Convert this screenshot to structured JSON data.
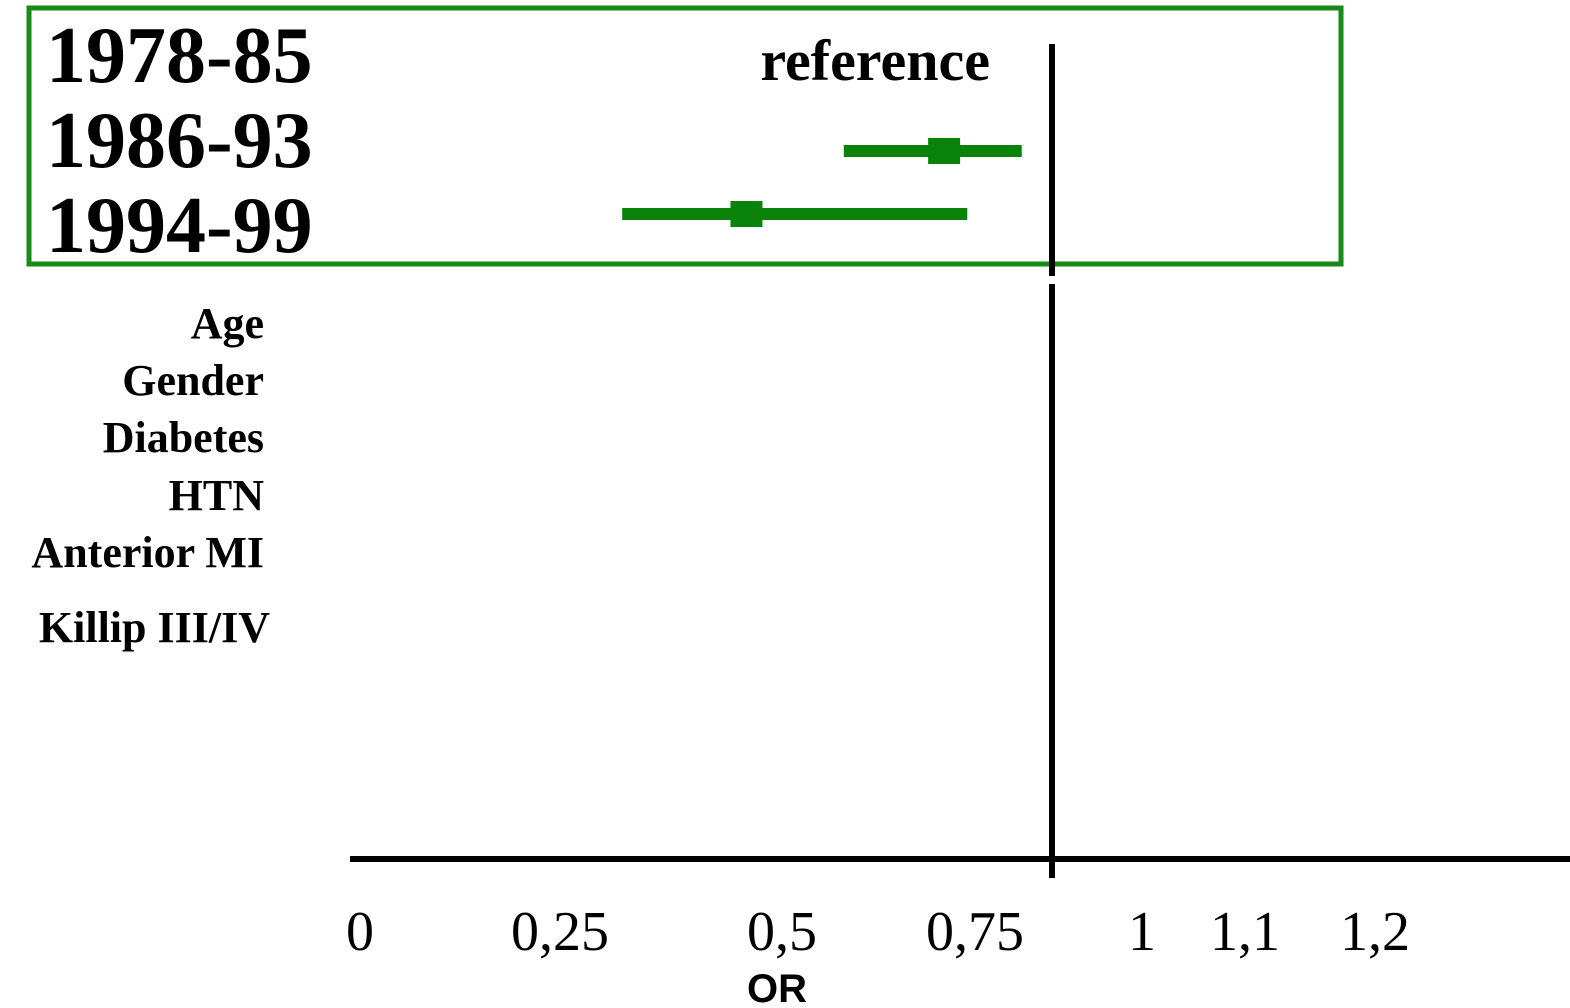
{
  "chart_data": {
    "type": "forest",
    "xlabel": "OR",
    "reference_label": "reference",
    "reference_line_value": 1,
    "x_ticks": [
      {
        "value": 0,
        "label": "0"
      },
      {
        "value": 0.25,
        "label": "0,25"
      },
      {
        "value": 0.5,
        "label": "0,5"
      },
      {
        "value": 0.75,
        "label": "0,75"
      },
      {
        "value": 1,
        "label": "1"
      },
      {
        "value": 1.1,
        "label": "1,1"
      },
      {
        "value": 1.2,
        "label": "1,2"
      }
    ],
    "periods": [
      {
        "label": "1978-85",
        "reference": true
      },
      {
        "label": "1986-93",
        "or": 0.71,
        "ci_low": 0.58,
        "ci_high": 0.82
      },
      {
        "label": "1994-99",
        "or": 0.46,
        "ci_low": 0.32,
        "ci_high": 0.74
      }
    ],
    "covariates": [
      "Age",
      "Gender",
      "Diabetes",
      "HTN",
      "Anterior MI",
      "Killip III/IV"
    ],
    "colors": {
      "highlight_box": "#178a17",
      "estimate": "#0b830b",
      "axis": "#000000"
    }
  }
}
